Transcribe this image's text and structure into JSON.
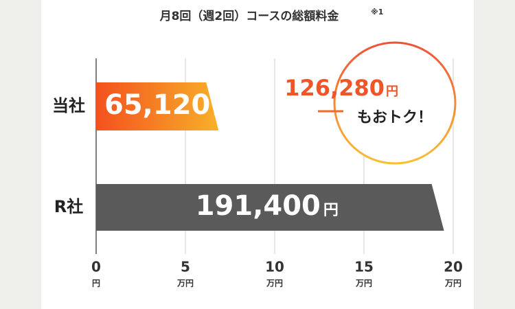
{
  "chart_data": {
    "type": "hbar",
    "title": "月8回（週2回）コースの総額料金",
    "title_note": "※1",
    "categories": [
      "当社",
      "R社"
    ],
    "values": [
      65120,
      191400
    ],
    "value_labels": [
      "65,120",
      "191,400"
    ],
    "value_unit": "円",
    "colors": [
      [
        "#f4511e",
        "#f8b02a"
      ],
      [
        "#5a5a5a",
        "#5a5a5a"
      ]
    ],
    "xlim": [
      0,
      200000
    ],
    "xticks": [
      {
        "value": 0,
        "label": "0",
        "unit": "円"
      },
      {
        "value": 50000,
        "label": "5",
        "unit": "万円"
      },
      {
        "value": 100000,
        "label": "10",
        "unit": "万円"
      },
      {
        "value": 150000,
        "label": "15",
        "unit": "万円"
      },
      {
        "value": 200000,
        "label": "20",
        "unit": "万円"
      }
    ],
    "grid": true,
    "annotation": {
      "amount": "126,280",
      "unit": "円",
      "text": "もおトク！"
    }
  }
}
